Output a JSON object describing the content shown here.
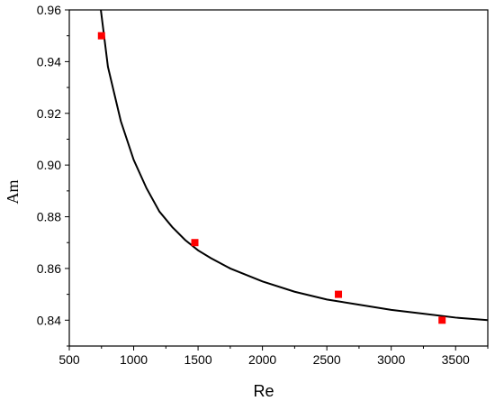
{
  "chart_data": {
    "type": "scatter",
    "xlabel": "Re",
    "ylabel": "Am",
    "xlim": [
      500,
      3750
    ],
    "ylim": [
      0.83,
      0.96
    ],
    "x_ticks": [
      500,
      1000,
      1500,
      2000,
      2500,
      3000,
      3500
    ],
    "x_tick_labels": [
      "500",
      "1000",
      "1500",
      "2000",
      "2500",
      "3000",
      "3500"
    ],
    "y_ticks": [
      0.84,
      0.86,
      0.88,
      0.9,
      0.92,
      0.94,
      0.96
    ],
    "y_tick_labels": [
      "0.84",
      "0.86",
      "0.88",
      "0.90",
      "0.92",
      "0.94",
      "0.96"
    ],
    "grid": false,
    "series": [
      {
        "type": "scatter",
        "marker": "square",
        "color": "#ff0000",
        "points": [
          {
            "x": 750,
            "y": 0.95
          },
          {
            "x": 1475,
            "y": 0.87
          },
          {
            "x": 2590,
            "y": 0.85
          },
          {
            "x": 3395,
            "y": 0.84
          }
        ]
      },
      {
        "type": "line",
        "color": "#000000",
        "points": [
          {
            "x": 740,
            "y": 0.962
          },
          {
            "x": 800,
            "y": 0.938
          },
          {
            "x": 900,
            "y": 0.917
          },
          {
            "x": 1000,
            "y": 0.902
          },
          {
            "x": 1100,
            "y": 0.891
          },
          {
            "x": 1200,
            "y": 0.882
          },
          {
            "x": 1300,
            "y": 0.876
          },
          {
            "x": 1400,
            "y": 0.871
          },
          {
            "x": 1500,
            "y": 0.867
          },
          {
            "x": 1600,
            "y": 0.864
          },
          {
            "x": 1750,
            "y": 0.86
          },
          {
            "x": 2000,
            "y": 0.855
          },
          {
            "x": 2250,
            "y": 0.851
          },
          {
            "x": 2500,
            "y": 0.848
          },
          {
            "x": 2750,
            "y": 0.846
          },
          {
            "x": 3000,
            "y": 0.844
          },
          {
            "x": 3250,
            "y": 0.8425
          },
          {
            "x": 3500,
            "y": 0.841
          },
          {
            "x": 3750,
            "y": 0.84
          }
        ]
      }
    ]
  }
}
